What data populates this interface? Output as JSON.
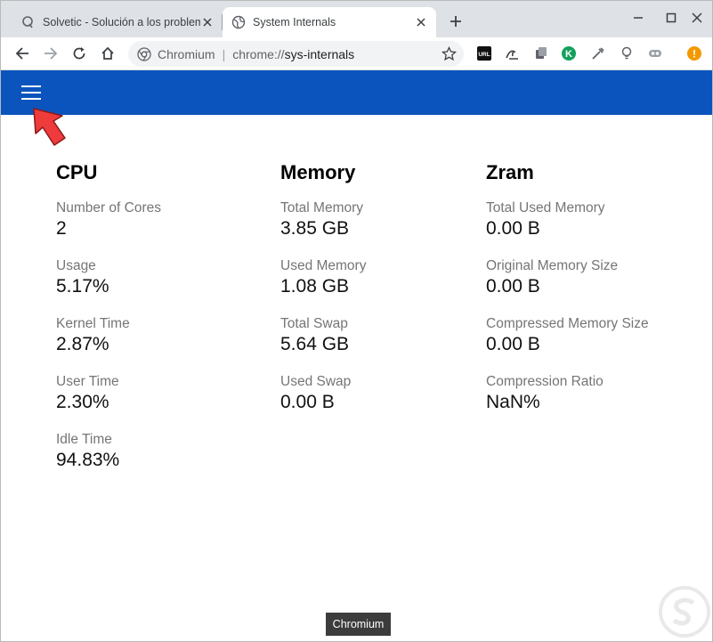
{
  "browser": {
    "tabs": [
      {
        "title": "Solvetic - Solución a los problem",
        "icon": "solvetic-icon",
        "active": false
      },
      {
        "title": "System Internals",
        "icon": "globe-icon",
        "active": true
      }
    ],
    "address": {
      "chip_label": "Chromium",
      "separator": "|",
      "scheme": "chrome://",
      "host": "sys-internals"
    },
    "extensions": [
      "url-extension-icon",
      "wave-extension-icon",
      "copy-extension-icon",
      "k-extension-icon",
      "eyedropper-extension-icon",
      "bulb-extension-icon",
      "link-extension-icon",
      "alert-extension-icon"
    ],
    "extension_labels": {
      "url": "URL",
      "k": "K",
      "alert": "!"
    },
    "colors": {
      "header": "#0b54bd",
      "tabstrip": "#dee1e6",
      "alert": "#f29900",
      "arrow": "#ee3b3b"
    }
  },
  "sections": [
    {
      "title": "CPU",
      "metrics": [
        {
          "label": "Number of Cores",
          "value": "2"
        },
        {
          "label": "Usage",
          "value": "5.17%"
        },
        {
          "label": "Kernel Time",
          "value": "2.87%"
        },
        {
          "label": "User Time",
          "value": "2.30%"
        },
        {
          "label": "Idle Time",
          "value": "94.83%"
        }
      ]
    },
    {
      "title": "Memory",
      "metrics": [
        {
          "label": "Total Memory",
          "value": "3.85 GB"
        },
        {
          "label": "Used Memory",
          "value": "1.08 GB"
        },
        {
          "label": "Total Swap",
          "value": "5.64 GB"
        },
        {
          "label": "Used Swap",
          "value": "0.00 B"
        }
      ]
    },
    {
      "title": "Zram",
      "metrics": [
        {
          "label": "Total Used Memory",
          "value": "0.00 B"
        },
        {
          "label": "Original Memory Size",
          "value": "0.00 B"
        },
        {
          "label": "Compressed Memory Size",
          "value": "0.00 B"
        },
        {
          "label": "Compression Ratio",
          "value": "NaN%"
        }
      ]
    }
  ],
  "tooltip": "Chromium"
}
